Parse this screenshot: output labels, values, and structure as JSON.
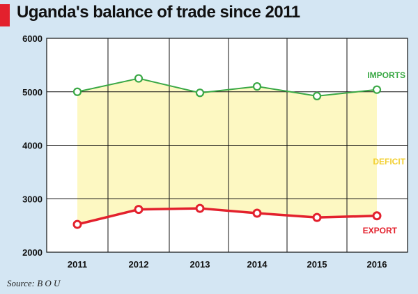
{
  "title": "Uganda's balance of trade since 2011",
  "source": "Source: B O U",
  "chart_data": {
    "type": "line",
    "title": "Uganda's balance of trade since 2011",
    "xlabel": "",
    "ylabel": "",
    "x": [
      "2011",
      "2012",
      "2013",
      "2014",
      "2015",
      "2016"
    ],
    "ylim": [
      2000,
      6000
    ],
    "yticks": [
      2000,
      3000,
      4000,
      5000,
      6000
    ],
    "grid": true,
    "series": [
      {
        "name": "IMPORTS",
        "values": [
          5000,
          5250,
          4980,
          5100,
          4920,
          5040
        ],
        "color": "#3aa845"
      },
      {
        "name": "EXPORT",
        "values": [
          2520,
          2800,
          2820,
          2730,
          2650,
          2680
        ],
        "color": "#e3212d"
      }
    ],
    "annotations": [
      {
        "text": "DEFICIT",
        "color": "#f2cf2f"
      }
    ],
    "fill_color": "#fdf8c2",
    "background": "#ffffff"
  }
}
